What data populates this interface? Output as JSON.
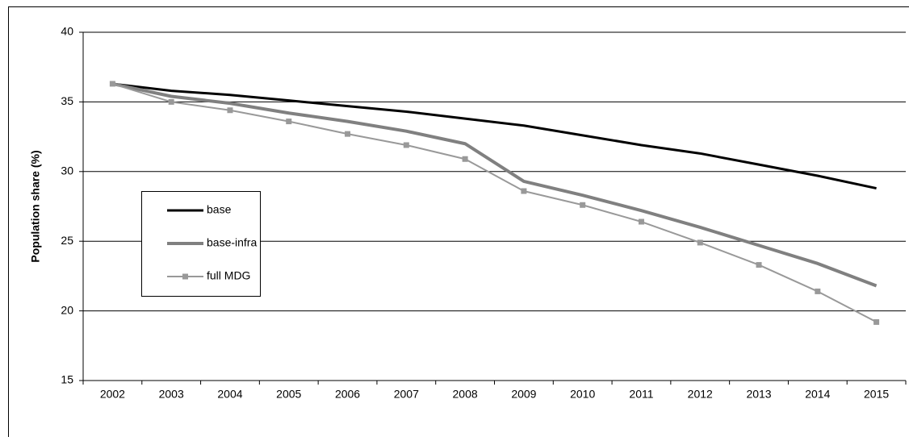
{
  "chart_data": {
    "type": "line",
    "y_label": "Population share (%)",
    "categories": [
      "2002",
      "2003",
      "2004",
      "2005",
      "2006",
      "2007",
      "2008",
      "2009",
      "2010",
      "2011",
      "2012",
      "2013",
      "2014",
      "2015"
    ],
    "series": [
      {
        "name": "base",
        "color": "#000000",
        "width": 3,
        "marker": "none",
        "values": [
          36.3,
          35.8,
          35.5,
          35.1,
          34.7,
          34.3,
          33.8,
          33.3,
          32.6,
          31.9,
          31.3,
          30.5,
          29.7,
          28.8
        ]
      },
      {
        "name": "base-infra",
        "color": "#808080",
        "width": 4,
        "marker": "none",
        "values": [
          36.3,
          35.4,
          34.9,
          34.2,
          33.6,
          32.9,
          32.0,
          29.3,
          28.3,
          27.2,
          26.0,
          24.7,
          23.4,
          21.8
        ]
      },
      {
        "name": "full MDG",
        "color": "#999999",
        "width": 2,
        "marker": "square",
        "values": [
          36.3,
          35.0,
          34.4,
          33.6,
          32.7,
          31.9,
          30.9,
          28.6,
          27.6,
          26.4,
          24.9,
          23.3,
          21.4,
          19.2
        ]
      }
    ],
    "ylim": [
      15,
      40
    ],
    "yticks": [
      15,
      20,
      25,
      30,
      35,
      40
    ],
    "grid": true,
    "legend": "center-left"
  }
}
